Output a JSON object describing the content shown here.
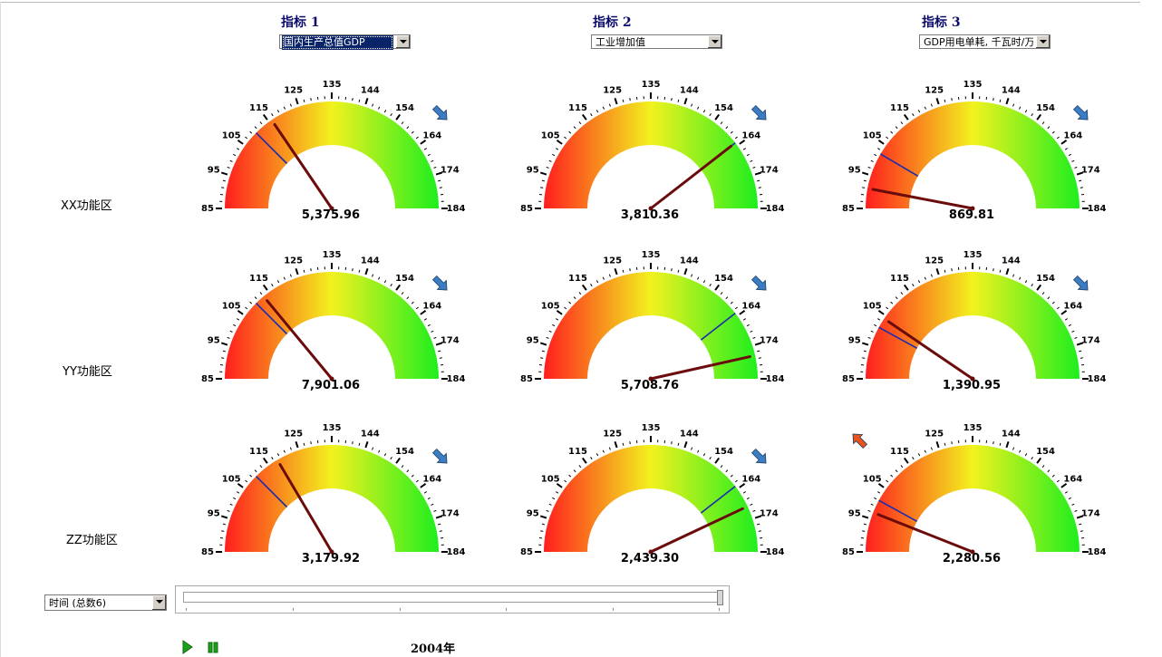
{
  "indicators": [
    {
      "label": "指标 1",
      "selected": "国内生产总值GDP"
    },
    {
      "label": "指标 2",
      "selected": "工业增加值"
    },
    {
      "label": "指标 3",
      "selected": "GDP用电单耗, 千瓦时/万"
    }
  ],
  "rows": [
    {
      "label": "XX功能区"
    },
    {
      "label": "YY功能区"
    },
    {
      "label": "ZZ功能区"
    }
  ],
  "gauge_scale": {
    "tick_labels": [
      "85",
      "95",
      "105",
      "115",
      "125",
      "135",
      "144",
      "154",
      "164",
      "174",
      "184"
    ],
    "min": 85,
    "max": 184,
    "colors": {
      "low": "#ff1e1e",
      "mid": "#f2f21e",
      "high": "#1eee1e"
    }
  },
  "gauges": [
    [
      {
        "value": "5,375.96",
        "needle_pct": 0.31,
        "blue_mark_pct": 0.25,
        "trend": "down",
        "trend_color": "#3b7dc4"
      },
      {
        "value": "3,810.36",
        "needle_pct": 0.79,
        "blue_mark_pct": 0.79,
        "trend": "down",
        "trend_color": "#3b7dc4"
      },
      {
        "value": "869.81",
        "needle_pct": 0.06,
        "blue_mark_pct": 0.17,
        "trend": "down",
        "trend_color": "#3b7dc4"
      }
    ],
    [
      {
        "value": "7,901.06",
        "needle_pct": 0.28,
        "blue_mark_pct": 0.25,
        "trend": "down",
        "trend_color": "#3b7dc4"
      },
      {
        "value": "5,708.76",
        "needle_pct": 0.93,
        "blue_mark_pct": 0.79,
        "trend": "down",
        "trend_color": "#3b7dc4"
      },
      {
        "value": "1,390.95",
        "needle_pct": 0.19,
        "blue_mark_pct": 0.16,
        "trend": "down",
        "trend_color": "#3b7dc4"
      }
    ],
    [
      {
        "value": "3,179.92",
        "needle_pct": 0.33,
        "blue_mark_pct": 0.25,
        "trend": "down",
        "trend_color": "#3b7dc4"
      },
      {
        "value": "2,439.30",
        "needle_pct": 0.86,
        "blue_mark_pct": 0.79,
        "trend": "down",
        "trend_color": "#3b7dc4"
      },
      {
        "value": "2,280.56",
        "needle_pct": 0.12,
        "blue_mark_pct": 0.16,
        "trend": "up",
        "trend_color": "#e8531c"
      }
    ]
  ],
  "time_select": "时间 (总数6)",
  "slider": {
    "position_pct": 1.0,
    "ticks": 6
  },
  "controls": {
    "play_icon": "play-icon",
    "pause_icon": "pause-icon",
    "play_color": "#1ca01c",
    "pause_color": "#1ca01c"
  },
  "year_label": "2004年"
}
